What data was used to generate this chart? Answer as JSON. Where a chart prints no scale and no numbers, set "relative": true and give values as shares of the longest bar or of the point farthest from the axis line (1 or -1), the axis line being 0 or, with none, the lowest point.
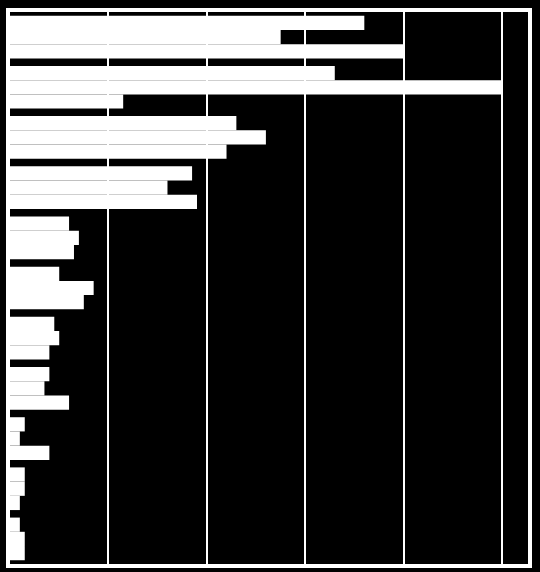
{
  "chart_data": {
    "type": "bar",
    "orientation": "horizontal",
    "relative": true,
    "grid": "x",
    "categories": [
      null,
      null,
      null,
      null,
      null,
      null,
      null,
      null,
      null,
      null,
      null
    ],
    "series": [
      {
        "color": "#ffffff",
        "values": [
          0.72,
          0.66,
          0.46,
          0.37,
          0.12,
          0.1,
          0.09,
          0.08,
          0.03,
          0.03,
          0.02
        ]
      },
      {
        "color": "#ffffff",
        "values": [
          0.55,
          1.0,
          0.52,
          0.32,
          0.14,
          0.17,
          0.1,
          0.07,
          0.02,
          0.03,
          0.03
        ]
      },
      {
        "color": "#ffffff",
        "values": [
          0.8,
          0.23,
          0.44,
          0.38,
          0.13,
          0.15,
          0.08,
          0.12,
          0.08,
          0.02,
          0.03
        ]
      }
    ]
  }
}
